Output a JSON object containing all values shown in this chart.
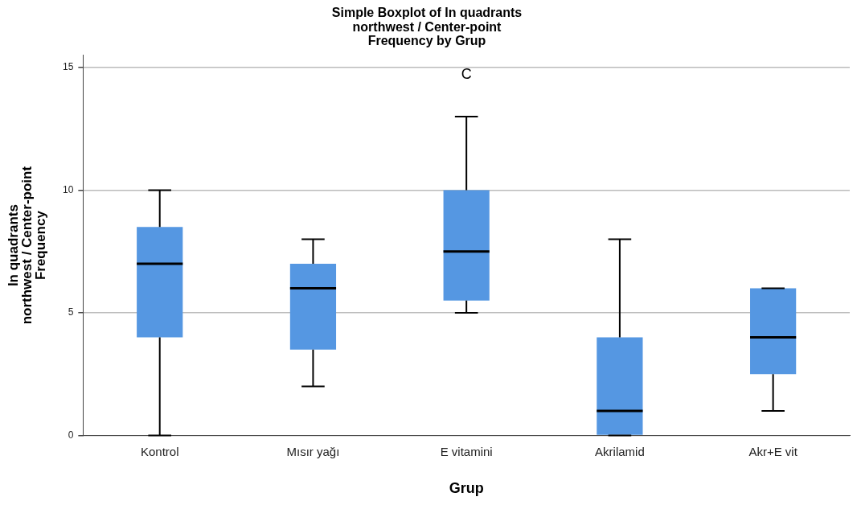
{
  "chart_data": {
    "type": "box",
    "title": "Simple Boxplot of In quadrants\nnorthwest / Center-point\nFrequency by Grup",
    "xlabel": "Grup",
    "ylabel": "In quadrants\nnorthwest / Center-point\nFrequency",
    "categories": [
      "Kontrol",
      "Mısır yağı",
      "E vitamini",
      "Akrilamid",
      "Akr+E vit"
    ],
    "color": "#5597e2",
    "boxes": [
      {
        "low": 0,
        "q1": 4,
        "median": 7,
        "q3": 8.5,
        "high": 10
      },
      {
        "low": 2,
        "q1": 3.5,
        "median": 6,
        "q3": 7,
        "high": 8
      },
      {
        "low": 5,
        "q1": 5.5,
        "median": 7.5,
        "q3": 10,
        "high": 13
      },
      {
        "low": 0,
        "q1": 0,
        "median": 1,
        "q3": 4,
        "high": 8
      },
      {
        "low": 1,
        "q1": 2.5,
        "median": 4,
        "q3": 6,
        "high": 6
      }
    ],
    "annotations": [
      "C"
    ],
    "ylim": [
      0,
      15.5
    ],
    "yticks": [
      0,
      5,
      10,
      15
    ],
    "grid": "y",
    "legend": false
  }
}
